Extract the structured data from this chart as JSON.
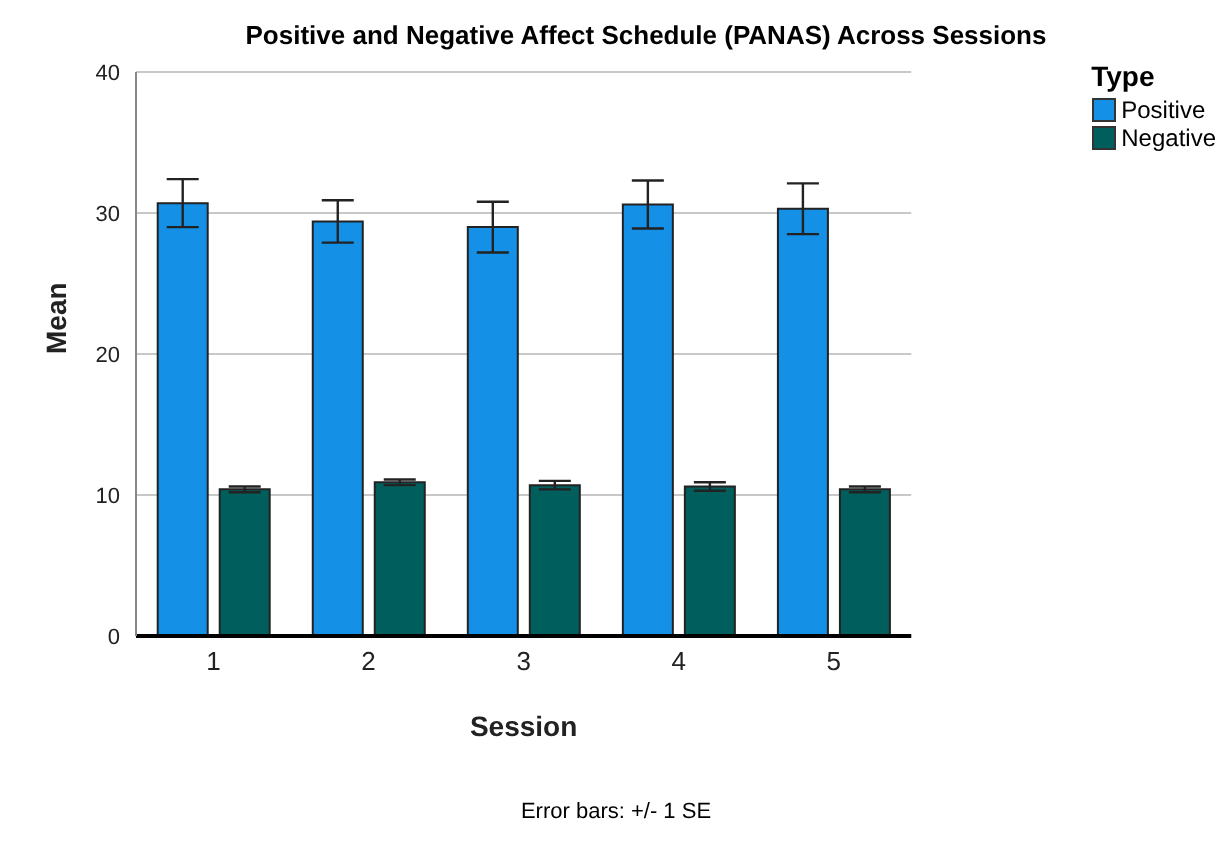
{
  "chart_data": {
    "type": "bar",
    "title": "Positive and Negative Affect Schedule (PANAS) Across Sessions",
    "xlabel": "Session",
    "ylabel": "Mean",
    "legend_title": "Type",
    "categories": [
      "1",
      "2",
      "3",
      "4",
      "5"
    ],
    "series": [
      {
        "name": "Positive",
        "color": "#1490e6",
        "values": [
          30.7,
          29.4,
          29.0,
          30.6,
          30.3
        ],
        "errors": [
          1.7,
          1.5,
          1.8,
          1.7,
          1.8
        ]
      },
      {
        "name": "Negative",
        "color": "#005f5c",
        "values": [
          10.4,
          10.9,
          10.7,
          10.6,
          10.4
        ],
        "errors": [
          0.2,
          0.2,
          0.3,
          0.3,
          0.2
        ]
      }
    ],
    "ylim": [
      0,
      40
    ],
    "yticks": [
      0,
      10,
      20,
      30,
      40
    ],
    "grid": "y",
    "legend": "top right",
    "annotations": [
      "Error bars: +/- 1 SE"
    ]
  }
}
